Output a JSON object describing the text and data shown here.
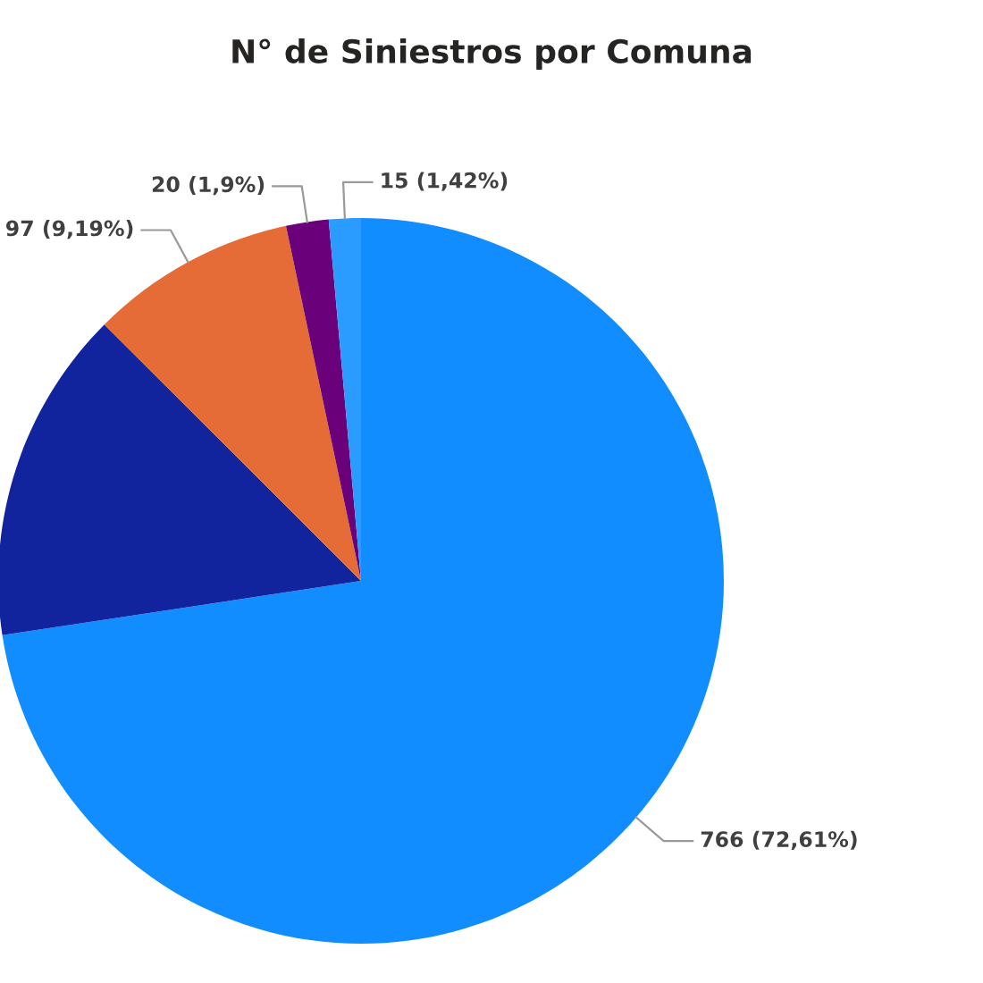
{
  "chart_data": {
    "type": "pie",
    "title": "N° de Siniestros por Comuna",
    "categories": [
      null,
      null,
      null,
      null,
      null
    ],
    "values": [
      766,
      157,
      97,
      20,
      15
    ],
    "colors": [
      "#118dff",
      "#12239e",
      "#e66c37",
      "#6b007b",
      "#2a9bff"
    ],
    "value_labels": [
      "766 (72,61%)",
      null,
      "97 (9,19%)",
      "20 (1,9%)",
      "15 (1,42%)"
    ],
    "legend": false
  }
}
